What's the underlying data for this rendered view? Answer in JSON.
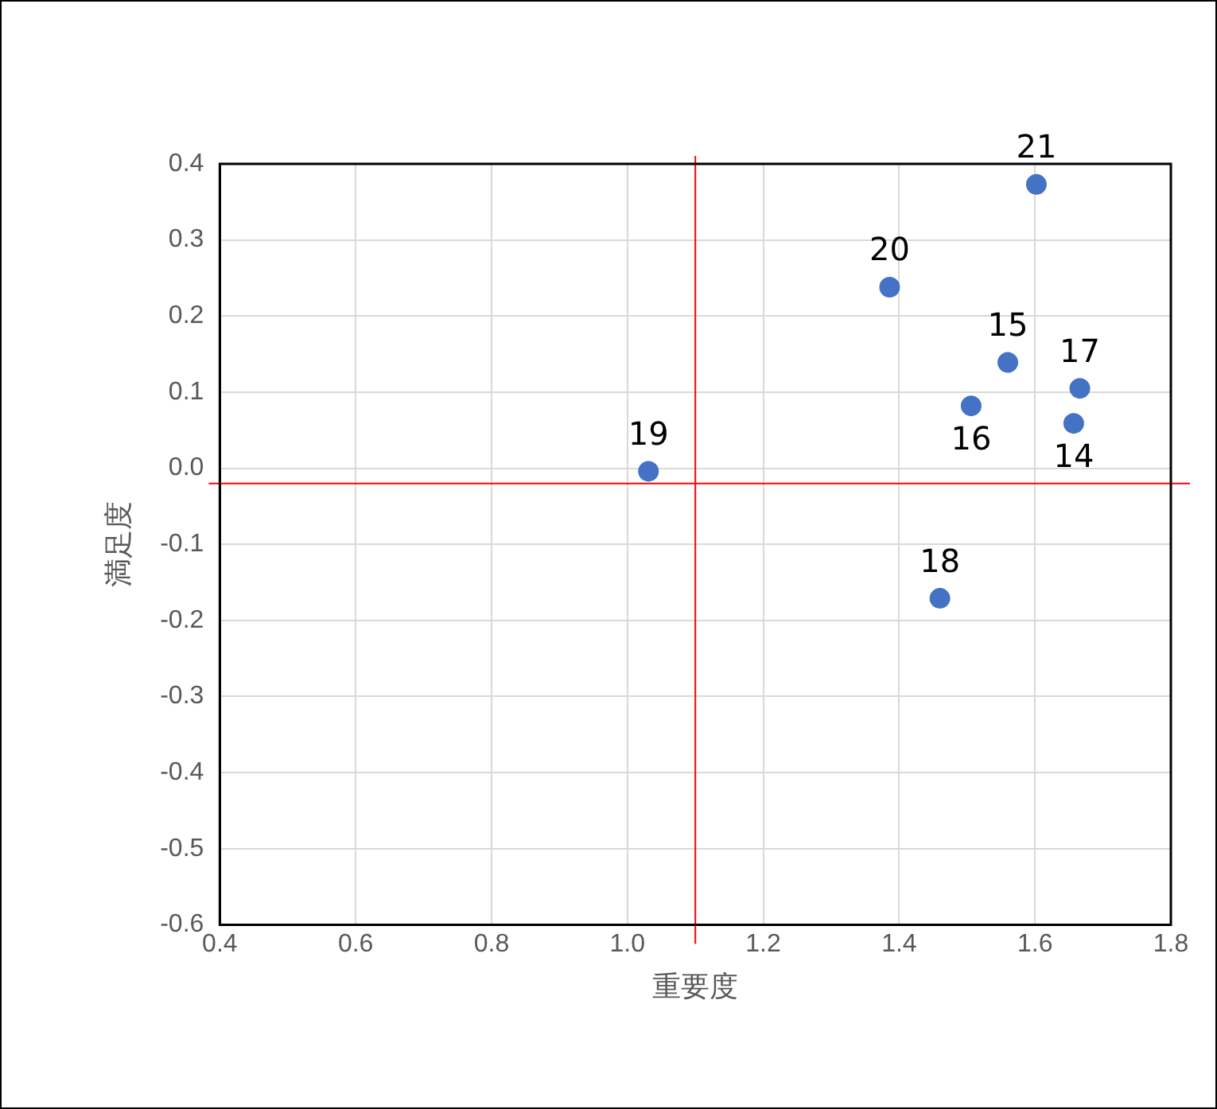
{
  "chart_data": {
    "type": "scatter",
    "xlabel": "重要度",
    "ylabel": "満足度",
    "x": [
      1.657,
      1.56,
      1.506,
      1.666,
      1.46,
      1.031,
      1.386,
      1.602
    ],
    "values": [
      0.059,
      0.139,
      0.082,
      0.105,
      -0.171,
      -0.004,
      0.238,
      0.373
    ],
    "annotations": [
      {
        "text": "14",
        "x": 1.657,
        "y": 0.059
      },
      {
        "text": "15",
        "x": 1.56,
        "y": 0.139
      },
      {
        "text": "16",
        "x": 1.506,
        "y": 0.082
      },
      {
        "text": "17",
        "x": 1.666,
        "y": 0.105
      },
      {
        "text": "18",
        "x": 1.46,
        "y": -0.171
      },
      {
        "text": "19",
        "x": 1.031,
        "y": -0.004
      },
      {
        "text": "20",
        "x": 1.386,
        "y": 0.238
      },
      {
        "text": "21",
        "x": 1.602,
        "y": 0.373
      }
    ],
    "color": "#4472c4",
    "marker": "circle",
    "xlim": [
      0.4,
      1.8
    ],
    "xticks": [
      {
        "value": 0.4,
        "label": "0.4"
      },
      {
        "value": 0.6,
        "label": "0.6"
      },
      {
        "value": 0.8,
        "label": "0.8"
      },
      {
        "value": 1.0,
        "label": "1.0"
      },
      {
        "value": 1.2,
        "label": "1.2"
      },
      {
        "value": 1.4,
        "label": "1.4"
      },
      {
        "value": 1.6,
        "label": "1.6"
      },
      {
        "value": 1.8,
        "label": "1.8"
      }
    ],
    "ylim": [
      -0.6,
      0.4
    ],
    "yticks": [
      {
        "value": -0.6,
        "label": "-0.6"
      },
      {
        "value": -0.5,
        "label": "-0.5"
      },
      {
        "value": -0.4,
        "label": "-0.4"
      },
      {
        "value": -0.3,
        "label": "-0.3"
      },
      {
        "value": -0.2,
        "label": "-0.2"
      },
      {
        "value": -0.1,
        "label": "-0.1"
      },
      {
        "value": 0,
        "label": "0.0"
      },
      {
        "value": 0.1,
        "label": "0.1"
      },
      {
        "value": 0.2,
        "label": "0.2"
      },
      {
        "value": 0.3,
        "label": "0.3"
      },
      {
        "value": 0.4,
        "label": "0.4"
      }
    ],
    "grid": true,
    "ref_lines": [
      {
        "axis": "x",
        "value": 1.1,
        "color": "#ff0000"
      },
      {
        "axis": "y",
        "value": -0.02,
        "color": "#ff0000"
      }
    ]
  }
}
